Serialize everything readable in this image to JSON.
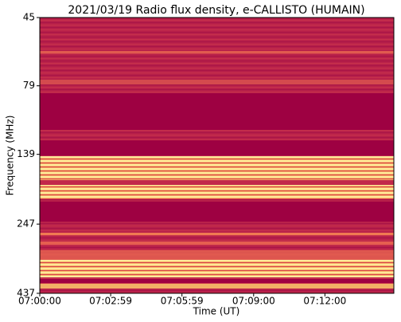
{
  "chart_data": {
    "type": "spectrogram",
    "title": "2021/03/19  Radio flux density, e-CALLISTO (HUMAIN)",
    "x_label": "Time (UT)",
    "y_label": "Frequency (MHz)",
    "xlim": [
      0,
      894
    ],
    "xticks": [
      {
        "value": 0,
        "label": "07:00:00"
      },
      {
        "value": 179,
        "label": "07:02:59"
      },
      {
        "value": 359,
        "label": "07:05:59"
      },
      {
        "value": 540,
        "label": "07:09:00"
      },
      {
        "value": 720,
        "label": "07:12:00"
      }
    ],
    "ylim": [
      45,
      437
    ],
    "yticks": [
      45,
      79,
      139,
      247,
      437
    ],
    "y_log_scale": true,
    "y_inverted": true
  }
}
